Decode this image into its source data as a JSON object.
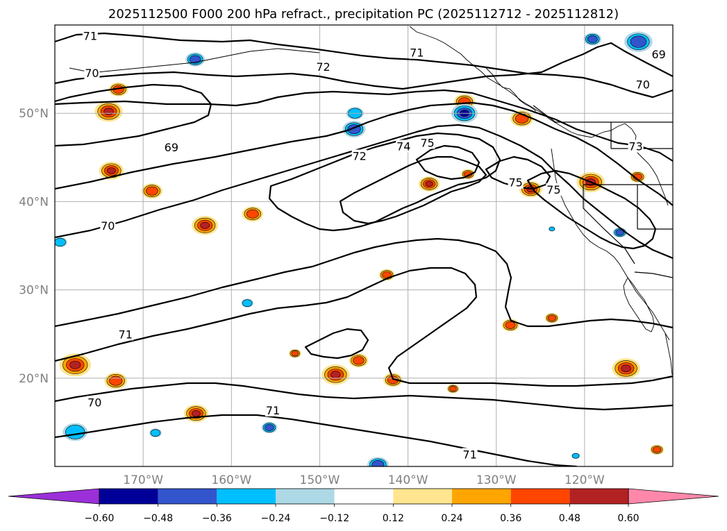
{
  "title": "2025112500 F000 200 hPa refract., precipitation PC (2025112712 - 2025112812)",
  "map": {
    "lon_range": [
      -180,
      -110
    ],
    "lat_range": [
      10,
      60
    ],
    "lon_ticks": [
      -170,
      -160,
      -150,
      -140,
      -130,
      -120
    ],
    "lon_labels": [
      "170°W",
      "160°W",
      "150°W",
      "140°W",
      "130°W",
      "120°W"
    ],
    "lat_ticks": [
      20,
      30,
      40,
      50
    ],
    "lat_labels": [
      "20°N",
      "30°N",
      "40°N",
      "50°N"
    ]
  },
  "contour_labels": [
    {
      "text": "71",
      "lon": -176,
      "lat": 58.7
    },
    {
      "text": "70",
      "lon": -175.8,
      "lat": 54.5
    },
    {
      "text": "72",
      "lon": -149.6,
      "lat": 55.2
    },
    {
      "text": "71",
      "lon": -139,
      "lat": 56.8
    },
    {
      "text": "69",
      "lon": -111.6,
      "lat": 56.6
    },
    {
      "text": "70",
      "lon": -113.4,
      "lat": 53.2
    },
    {
      "text": "69",
      "lon": -166.8,
      "lat": 46.1
    },
    {
      "text": "72",
      "lon": -145.5,
      "lat": 45.1
    },
    {
      "text": "74",
      "lon": -140.5,
      "lat": 46.2
    },
    {
      "text": "75",
      "lon": -137.8,
      "lat": 46.6
    },
    {
      "text": "73",
      "lon": -114.2,
      "lat": 46.2
    },
    {
      "text": "75",
      "lon": -127.8,
      "lat": 42.1
    },
    {
      "text": "75",
      "lon": -123.5,
      "lat": 41.3
    },
    {
      "text": "70",
      "lon": -174,
      "lat": 37.2
    },
    {
      "text": "71",
      "lon": -172,
      "lat": 24.9
    },
    {
      "text": "70",
      "lon": -175.5,
      "lat": 17.2
    },
    {
      "text": "71",
      "lon": -155.3,
      "lat": 16.3
    },
    {
      "text": "71",
      "lon": -133,
      "lat": 11.3
    }
  ],
  "colorbar": {
    "levels": [
      -0.6,
      -0.48,
      -0.36,
      -0.24,
      -0.12,
      0.12,
      0.24,
      0.36,
      0.48,
      0.6
    ],
    "tick_labels": [
      "−0.60",
      "−0.48",
      "−0.36",
      "−0.24",
      "−0.12",
      "0.12",
      "0.24",
      "0.36",
      "0.48",
      "0.60"
    ],
    "colors": [
      "#ffffff",
      "#ffe58f",
      "#ffa500",
      "#ff4500",
      "#b22222"
    ],
    "negative_colors": [
      "#000099",
      "#3355cc",
      "#00bfff",
      "#add8e6"
    ],
    "under_color": "#9b30d9",
    "over_color": "#ff88aa",
    "neutral_color": "#ffffff"
  },
  "chart_data": {
    "type": "heatmap",
    "title": "2025112500 F000 200 hPa refract., precipitation PC (2025112712 - 2025112812)",
    "field_contoured": "200 hPa refractivity",
    "field_shaded": "precipitation PC",
    "contour_levels_labeled": [
      69,
      70,
      71,
      72,
      73,
      74,
      75
    ],
    "shading_levels": [
      -0.6,
      -0.48,
      -0.36,
      -0.24,
      -0.12,
      0.12,
      0.24,
      0.36,
      0.48,
      0.6
    ],
    "xlim": [
      -180,
      -110
    ],
    "ylim": [
      10,
      60
    ]
  },
  "blobs_positive": [
    {
      "lon": -173.9,
      "lat": 50.2,
      "r": 1.6,
      "v": 0.55
    },
    {
      "lon": -172.8,
      "lat": 52.7,
      "r": 1.1,
      "v": 0.4
    },
    {
      "lon": -173.6,
      "lat": 43.5,
      "r": 1.4,
      "v": 0.5
    },
    {
      "lon": -169,
      "lat": 41.2,
      "r": 1.2,
      "v": 0.45
    },
    {
      "lon": -163,
      "lat": 37.3,
      "r": 1.5,
      "v": 0.55
    },
    {
      "lon": -157.6,
      "lat": 38.6,
      "r": 1.2,
      "v": 0.45
    },
    {
      "lon": -177.7,
      "lat": 21.5,
      "r": 1.8,
      "v": 0.55
    },
    {
      "lon": -173.1,
      "lat": 19.7,
      "r": 1.3,
      "v": 0.45
    },
    {
      "lon": -164,
      "lat": 16,
      "r": 1.4,
      "v": 0.5
    },
    {
      "lon": -148.2,
      "lat": 20.4,
      "r": 1.6,
      "v": 0.55
    },
    {
      "lon": -145.6,
      "lat": 22,
      "r": 1.1,
      "v": 0.45
    },
    {
      "lon": -152.8,
      "lat": 22.8,
      "r": 0.7,
      "v": 0.4
    },
    {
      "lon": -141.7,
      "lat": 19.8,
      "r": 1.1,
      "v": 0.45
    },
    {
      "lon": -137.6,
      "lat": 42,
      "r": 1.2,
      "v": 0.5
    },
    {
      "lon": -133.2,
      "lat": 43.1,
      "r": 0.8,
      "v": 0.4
    },
    {
      "lon": -127.1,
      "lat": 49.4,
      "r": 1.3,
      "v": 0.45
    },
    {
      "lon": -133.6,
      "lat": 51.3,
      "r": 1.2,
      "v": 0.4
    },
    {
      "lon": -119.3,
      "lat": 42.2,
      "r": 1.6,
      "v": 0.55
    },
    {
      "lon": -114,
      "lat": 42.8,
      "r": 0.9,
      "v": 0.4
    },
    {
      "lon": -126.1,
      "lat": 41.4,
      "r": 1.3,
      "v": 0.5
    },
    {
      "lon": -128.4,
      "lat": 26,
      "r": 1,
      "v": 0.45
    },
    {
      "lon": -123.7,
      "lat": 26.8,
      "r": 0.8,
      "v": 0.4
    },
    {
      "lon": -115.3,
      "lat": 21.1,
      "r": 1.6,
      "v": 0.5
    },
    {
      "lon": -111.8,
      "lat": 11.9,
      "r": 0.8,
      "v": 0.4
    },
    {
      "lon": -134.9,
      "lat": 18.8,
      "r": 0.7,
      "v": 0.4
    },
    {
      "lon": -142.4,
      "lat": 31.7,
      "r": 0.9,
      "v": 0.45
    }
  ],
  "blobs_negative": [
    {
      "lon": -146.1,
      "lat": 48.2,
      "r": 1.3,
      "v": -0.36
    },
    {
      "lon": -146,
      "lat": 50,
      "r": 1,
      "v": -0.3
    },
    {
      "lon": -133.6,
      "lat": 50,
      "r": 1.5,
      "v": -0.55
    },
    {
      "lon": -164.1,
      "lat": 56.1,
      "r": 1.1,
      "v": -0.4
    },
    {
      "lon": -119.1,
      "lat": 58.4,
      "r": 1,
      "v": -0.45
    },
    {
      "lon": -113.9,
      "lat": 58.1,
      "r": 1.6,
      "v": -0.4
    },
    {
      "lon": -179.4,
      "lat": 35.4,
      "r": 0.8,
      "v": -0.3
    },
    {
      "lon": -177.7,
      "lat": 13.9,
      "r": 1.4,
      "v": -0.3
    },
    {
      "lon": -168.6,
      "lat": 13.8,
      "r": 0.7,
      "v": -0.3
    },
    {
      "lon": -155.7,
      "lat": 14.4,
      "r": 0.9,
      "v": -0.45
    },
    {
      "lon": -143.4,
      "lat": 10.2,
      "r": 1.2,
      "v": -0.4
    },
    {
      "lon": -158.2,
      "lat": 28.5,
      "r": 0.7,
      "v": -0.3
    },
    {
      "lon": -116,
      "lat": 36.5,
      "r": 0.8,
      "v": -0.4
    },
    {
      "lon": -121,
      "lat": 11.2,
      "r": 0.5,
      "v": -0.3
    },
    {
      "lon": -123.7,
      "lat": 36.9,
      "r": 0.4,
      "v": -0.3
    }
  ]
}
